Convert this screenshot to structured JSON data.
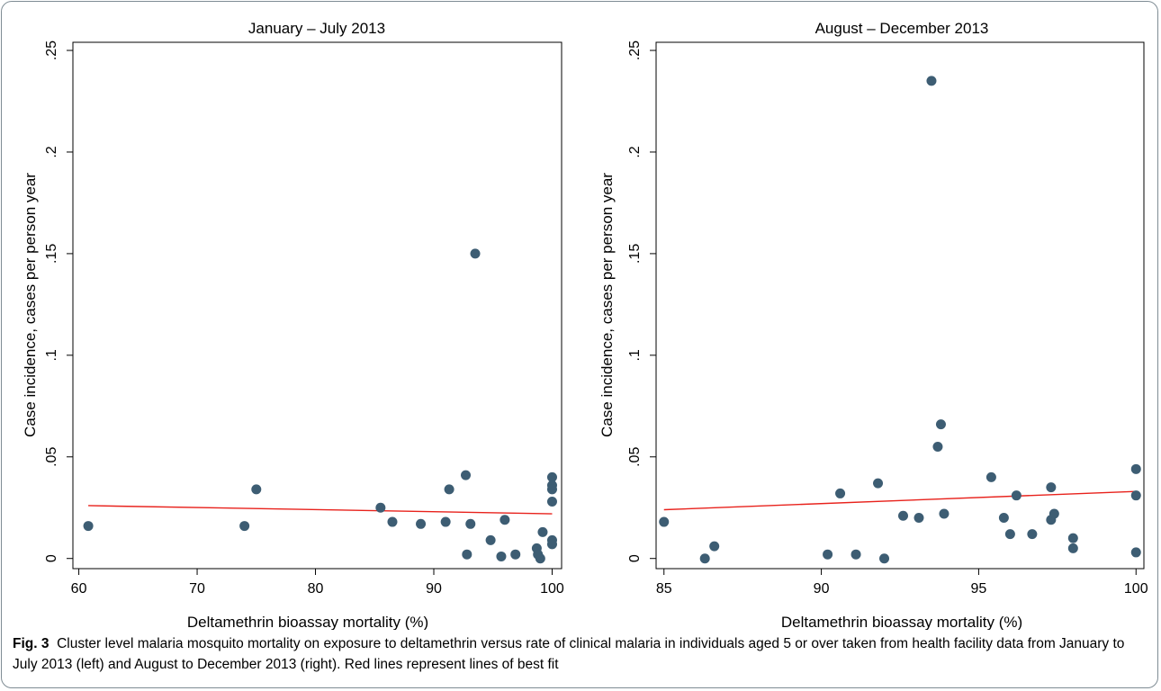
{
  "figure": {
    "caption_label": "Fig. 3",
    "caption_text": "Cluster level malaria mosquito mortality on exposure to deltamethrin versus rate of clinical malaria in individuals aged 5 or over taken from health facility data from January to July 2013 (left) and August to December 2013 (right). Red lines represent lines of best fit"
  },
  "colors": {
    "point": "#3d5d73",
    "fit_line": "#e8221c",
    "axis": "#000000"
  },
  "chart_data": [
    {
      "type": "scatter",
      "title": "January – July 2013",
      "xlabel": "Deltamethrin bioassay mortality (%)",
      "ylabel": "Case incidence, cases per person year",
      "xlim": [
        59.5,
        100.8
      ],
      "ylim": [
        -0.005,
        0.254
      ],
      "xticks": [
        60,
        70,
        80,
        90,
        100
      ],
      "xtick_labels": [
        "60",
        "70",
        "80",
        "90",
        "100"
      ],
      "yticks": [
        0,
        0.05,
        0.1,
        0.15,
        0.2,
        0.25
      ],
      "ytick_labels": [
        "0",
        ".05",
        ".1",
        ".15",
        ".2",
        ".25"
      ],
      "grid": false,
      "points": [
        [
          60.8,
          0.016
        ],
        [
          74.0,
          0.016
        ],
        [
          75.0,
          0.034
        ],
        [
          85.5,
          0.025
        ],
        [
          86.5,
          0.018
        ],
        [
          88.9,
          0.017
        ],
        [
          91.0,
          0.018
        ],
        [
          91.3,
          0.034
        ],
        [
          92.7,
          0.041
        ],
        [
          92.8,
          0.002
        ],
        [
          93.1,
          0.017
        ],
        [
          93.5,
          0.15
        ],
        [
          94.8,
          0.009
        ],
        [
          95.7,
          0.001
        ],
        [
          96.0,
          0.019
        ],
        [
          96.9,
          0.002
        ],
        [
          98.7,
          0.005
        ],
        [
          98.8,
          0.002
        ],
        [
          99.0,
          0.0
        ],
        [
          99.2,
          0.013
        ],
        [
          100.0,
          0.04
        ],
        [
          100.0,
          0.036
        ],
        [
          100.0,
          0.034
        ],
        [
          100.0,
          0.028
        ],
        [
          100.0,
          0.009
        ],
        [
          100.0,
          0.007
        ]
      ],
      "fit_line": [
        [
          60.8,
          0.026
        ],
        [
          100.0,
          0.022
        ]
      ]
    },
    {
      "type": "scatter",
      "title": "August – December 2013",
      "xlabel": "Deltamethrin bioassay mortality (%)",
      "ylabel": "Case incidence, cases per person year",
      "xlim": [
        84.75,
        100.25
      ],
      "ylim": [
        -0.005,
        0.254
      ],
      "xticks": [
        85,
        90,
        95,
        100
      ],
      "xtick_labels": [
        "85",
        "90",
        "95",
        "100"
      ],
      "yticks": [
        0,
        0.05,
        0.1,
        0.15,
        0.2,
        0.25
      ],
      "ytick_labels": [
        "0",
        ".05",
        ".1",
        ".15",
        ".2",
        ".25"
      ],
      "grid": false,
      "points": [
        [
          85.0,
          0.018
        ],
        [
          86.3,
          0.0
        ],
        [
          86.6,
          0.006
        ],
        [
          90.2,
          0.002
        ],
        [
          90.6,
          0.032
        ],
        [
          91.1,
          0.002
        ],
        [
          91.8,
          0.037
        ],
        [
          92.0,
          0.0
        ],
        [
          92.6,
          0.021
        ],
        [
          93.1,
          0.02
        ],
        [
          93.5,
          0.235
        ],
        [
          93.7,
          0.055
        ],
        [
          93.8,
          0.066
        ],
        [
          93.9,
          0.022
        ],
        [
          95.4,
          0.04
        ],
        [
          95.8,
          0.02
        ],
        [
          96.0,
          0.012
        ],
        [
          96.2,
          0.031
        ],
        [
          96.7,
          0.012
        ],
        [
          97.3,
          0.035
        ],
        [
          97.3,
          0.019
        ],
        [
          97.4,
          0.022
        ],
        [
          98.0,
          0.01
        ],
        [
          98.0,
          0.005
        ],
        [
          100.0,
          0.044
        ],
        [
          100.0,
          0.031
        ],
        [
          100.0,
          0.003
        ]
      ],
      "fit_line": [
        [
          85.0,
          0.024
        ],
        [
          100.0,
          0.033
        ]
      ]
    }
  ]
}
